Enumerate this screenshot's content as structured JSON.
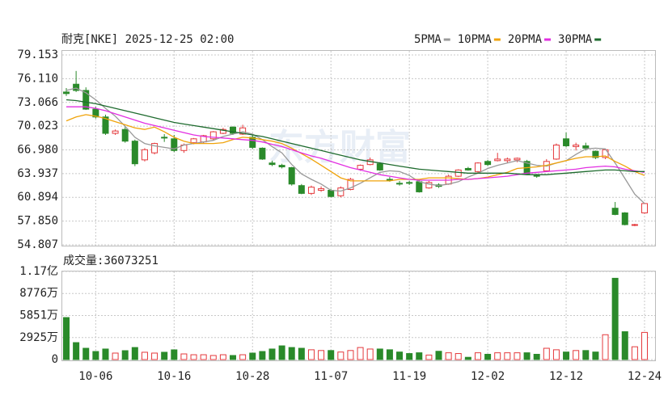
{
  "chart_data": {
    "type": "candlestick",
    "title": "耐克[NKE] 2025-12-25 02:00",
    "watermark": "东方财富",
    "categories": [
      null,
      null,
      null,
      "10-06",
      null,
      null,
      null,
      null,
      null,
      null,
      null,
      "10-16",
      null,
      null,
      null,
      null,
      null,
      null,
      null,
      "10-28",
      null,
      null,
      null,
      null,
      null,
      null,
      null,
      "11-07",
      null,
      null,
      null,
      null,
      null,
      null,
      null,
      "11-19",
      null,
      null,
      null,
      null,
      null,
      null,
      null,
      "12-02",
      null,
      null,
      null,
      null,
      null,
      null,
      null,
      "12-12",
      null,
      null,
      null,
      null,
      null,
      null,
      null,
      "12-24"
    ],
    "open": [
      74.4,
      75.4,
      74.6,
      72.2,
      71.2,
      69.1,
      69.6,
      68.1,
      65.7,
      66.6,
      68.6,
      68.4,
      66.9,
      67.9,
      68.0,
      68.4,
      69.1,
      69.9,
      69.0,
      68.6,
      67.2,
      65.3,
      65.0,
      64.7,
      62.4,
      61.4,
      61.8,
      61.8,
      61.1,
      61.9,
      64.5,
      65.1,
      65.2,
      63.2,
      62.7,
      62.8,
      62.9,
      62.1,
      62.5,
      62.6,
      63.6,
      64.6,
      64.2,
      65.5,
      65.6,
      65.6,
      65.7,
      65.5,
      63.7,
      64.3,
      65.8,
      68.4,
      67.4,
      67.5,
      66.8,
      66.0,
      59.5,
      58.9,
      57.3,
      58.9
    ],
    "high": [
      74.9,
      77.1,
      75.0,
      72.5,
      71.5,
      69.6,
      69.9,
      68.3,
      67.2,
      67.9,
      69.0,
      68.9,
      67.8,
      68.5,
      68.9,
      69.4,
      69.8,
      70.0,
      70.2,
      68.9,
      67.3,
      65.6,
      65.2,
      64.8,
      62.6,
      62.4,
      62.3,
      62.0,
      62.3,
      63.4,
      65.1,
      66.0,
      65.4,
      63.5,
      63.0,
      63.0,
      63.1,
      63.0,
      62.7,
      63.8,
      64.5,
      64.8,
      65.4,
      65.7,
      66.6,
      66.0,
      66.0,
      65.7,
      63.9,
      65.8,
      67.8,
      69.2,
      67.9,
      67.9,
      66.9,
      67.1,
      60.3,
      59.0,
      57.5,
      60.2
    ],
    "low": [
      73.9,
      74.4,
      72.1,
      71.0,
      68.9,
      68.9,
      67.9,
      64.9,
      65.5,
      66.4,
      68.0,
      66.7,
      66.6,
      67.7,
      67.8,
      68.2,
      69.0,
      68.9,
      68.9,
      67.1,
      65.7,
      64.9,
      64.6,
      62.4,
      61.3,
      61.2,
      61.6,
      60.9,
      60.9,
      61.8,
      64.3,
      65.0,
      64.3,
      62.9,
      62.4,
      62.5,
      61.5,
      62.0,
      62.1,
      62.5,
      63.5,
      64.3,
      64.0,
      64.9,
      65.5,
      65.3,
      65.4,
      63.8,
      63.4,
      64.2,
      65.7,
      67.3,
      66.9,
      66.9,
      65.8,
      65.8,
      58.6,
      57.3,
      57.2,
      58.8
    ],
    "close": [
      74.2,
      74.6,
      72.2,
      71.2,
      69.1,
      69.4,
      68.1,
      65.2,
      67.0,
      67.8,
      68.5,
      66.9,
      67.6,
      68.4,
      68.8,
      69.3,
      69.6,
      69.1,
      69.8,
      67.3,
      65.8,
      65.1,
      64.8,
      62.6,
      61.4,
      62.2,
      62.0,
      61.0,
      62.1,
      63.2,
      65.0,
      65.7,
      64.4,
      63.1,
      62.6,
      62.7,
      61.6,
      62.8,
      62.3,
      63.6,
      64.4,
      64.4,
      65.3,
      65.1,
      65.8,
      65.8,
      65.9,
      63.9,
      63.6,
      65.5,
      67.6,
      67.5,
      67.6,
      67.2,
      66.0,
      67.0,
      58.7,
      57.4,
      57.4,
      60.1
    ],
    "up_color": "#e4393c",
    "down_color": "#2a8a2a",
    "ylim": [
      54.807,
      79.153
    ],
    "yticks": [
      54.807,
      {
        "value": 57.85,
        "label": "57.850"
      },
      60.894,
      63.937,
      {
        "value": 66.98,
        "label": "66.980"
      },
      70.023,
      73.066,
      {
        "value": 76.11,
        "label": "76.110"
      },
      79.153
    ],
    "grid": true,
    "series": [
      {
        "name": "5PMA",
        "color": "#999999",
        "values": [
          74.6,
          74.9,
          74.3,
          73.4,
          72.3,
          71.3,
          70.0,
          68.6,
          67.8,
          67.5,
          67.3,
          67.1,
          67.6,
          67.8,
          68.0,
          68.2,
          68.7,
          69.0,
          69.3,
          69.0,
          68.3,
          67.4,
          66.6,
          65.1,
          63.9,
          63.2,
          62.6,
          61.8,
          61.7,
          62.1,
          62.7,
          63.4,
          64.1,
          64.3,
          64.2,
          63.7,
          62.9,
          62.6,
          62.4,
          62.6,
          62.9,
          63.5,
          64.0,
          64.6,
          65.0,
          65.3,
          65.6,
          65.3,
          65.0,
          64.9,
          65.3,
          65.6,
          66.4,
          67.1,
          67.2,
          67.1,
          65.3,
          63.3,
          61.3,
          60.1
        ]
      },
      {
        "name": "10PMA",
        "color": "#f0a30a",
        "values": [
          70.7,
          71.2,
          71.5,
          71.3,
          71.0,
          70.6,
          70.2,
          69.8,
          69.6,
          69.9,
          69.3,
          68.6,
          68.1,
          67.8,
          67.8,
          67.8,
          67.9,
          68.3,
          68.6,
          68.5,
          68.3,
          68.1,
          67.8,
          67.2,
          66.5,
          65.8,
          65.0,
          64.2,
          63.4,
          63.0,
          63.0,
          63.0,
          63.0,
          63.0,
          63.2,
          63.2,
          63.2,
          63.4,
          63.4,
          63.4,
          63.3,
          63.2,
          63.3,
          63.5,
          63.8,
          64.1,
          64.6,
          64.7,
          64.8,
          65.0,
          65.3,
          65.6,
          65.9,
          66.1,
          66.1,
          66.2,
          65.5,
          64.9,
          64.2,
          63.7
        ]
      },
      {
        "name": "20PMA",
        "color": "#e22fe2",
        "values": [
          72.5,
          72.5,
          72.5,
          72.3,
          72.0,
          71.6,
          71.2,
          70.8,
          70.4,
          70.1,
          69.8,
          69.5,
          69.2,
          68.9,
          68.7,
          68.6,
          68.5,
          68.4,
          68.3,
          68.2,
          68.0,
          67.7,
          67.4,
          67.0,
          66.6,
          66.2,
          65.9,
          65.5,
          65.1,
          64.7,
          64.4,
          64.1,
          63.8,
          63.6,
          63.4,
          63.2,
          63.1,
          63.1,
          63.1,
          63.1,
          63.2,
          63.2,
          63.3,
          63.4,
          63.5,
          63.6,
          63.8,
          64.0,
          64.1,
          64.2,
          64.3,
          64.4,
          64.5,
          64.7,
          64.8,
          64.9,
          64.8,
          64.5,
          64.3,
          64.1
        ]
      },
      {
        "name": "30PMA",
        "color": "#1e6b2e",
        "values": [
          73.4,
          73.3,
          73.1,
          72.9,
          72.6,
          72.3,
          72.0,
          71.7,
          71.4,
          71.1,
          70.8,
          70.5,
          70.3,
          70.1,
          69.9,
          69.7,
          69.5,
          69.3,
          69.1,
          68.9,
          68.7,
          68.4,
          68.1,
          67.8,
          67.5,
          67.2,
          66.9,
          66.6,
          66.3,
          66.0,
          65.7,
          65.5,
          65.3,
          65.1,
          64.9,
          64.7,
          64.5,
          64.4,
          64.3,
          64.2,
          64.1,
          64.0,
          64.0,
          64.0,
          64.0,
          64.0,
          63.9,
          63.8,
          63.8,
          63.8,
          63.9,
          64.0,
          64.1,
          64.2,
          64.3,
          64.4,
          64.4,
          64.3,
          64.2,
          64.2
        ]
      }
    ],
    "volume": {
      "label": "成交量:",
      "values": [
        55800000,
        22500000,
        15000000,
        10700000,
        14000000,
        8600000,
        11800000,
        16000000,
        9700000,
        8600000,
        9700000,
        12900000,
        7500000,
        6400000,
        6400000,
        5400000,
        6400000,
        5400000,
        6400000,
        8600000,
        10700000,
        14000000,
        18200000,
        16000000,
        15000000,
        13000000,
        12000000,
        12000000,
        10000000,
        12000000,
        16000000,
        14000000,
        14000000,
        13000000,
        10000000,
        8000000,
        9000000,
        6000000,
        11000000,
        9000000,
        8000000,
        3000000,
        9000000,
        7000000,
        9000000,
        9000000,
        9000000,
        9000000,
        7000000,
        15000000,
        13000000,
        10000000,
        12000000,
        12000000,
        10000000,
        33000000,
        108000000,
        37000000,
        17000000,
        36073251
      ],
      "ylim": [
        0,
        117010000
      ],
      "yticks": [
        0,
        {
          "value": 29250000,
          "label": "2925万"
        },
        {
          "value": 58510000,
          "label": "5851万"
        },
        {
          "value": 87760000,
          "label": "8776万"
        },
        {
          "value": 117010000,
          "label": "1.17亿"
        }
      ]
    }
  }
}
